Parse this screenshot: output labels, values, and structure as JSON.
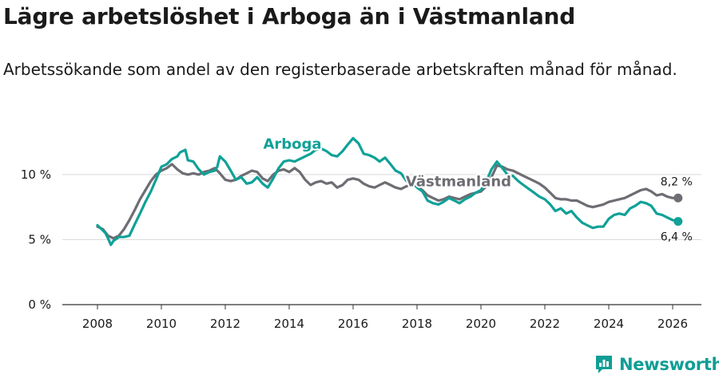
{
  "header": {
    "title": "Lägre arbetslöshet i Arboga än i Västmanland",
    "subtitle": "Arbetssökande som andel av den registerbaserade arbetskraften månad för månad."
  },
  "brand": {
    "name": "Newsworthy",
    "icon": "newsworthy-logo-icon"
  },
  "colors": {
    "arboga": "#10a198",
    "vastmanland": "#6d6d73",
    "grid": "#d9d9d9",
    "axis": "#333333",
    "text": "#1a1a1a"
  },
  "chart_data": {
    "type": "line",
    "title": "Lägre arbetslöshet i Arboga än i Västmanland",
    "subtitle": "Arbetssökande som andel av den registerbaserade arbetskraften månad för månad.",
    "xlabel": "",
    "ylabel": "",
    "xlim": [
      2006.9,
      2026.9
    ],
    "ylim": [
      0,
      13
    ],
    "x_ticks": [
      2008,
      2010,
      2012,
      2014,
      2016,
      2018,
      2020,
      2022,
      2024,
      2026
    ],
    "x_tick_labels": [
      "2008",
      "2010",
      "2012",
      "2014",
      "2016",
      "2018",
      "2020",
      "2022",
      "2024",
      "2026"
    ],
    "y_ticks": [
      0,
      5,
      10
    ],
    "y_tick_labels": [
      "0 %",
      "5 %",
      "10 %"
    ],
    "grid": "horizontal",
    "legend": "inline labels",
    "series": [
      {
        "name": "Arboga",
        "color": "#10a198",
        "end_label": "6,4 %",
        "points": [
          [
            2008.0,
            6.1
          ],
          [
            2008.17,
            5.7
          ],
          [
            2008.25,
            5.5
          ],
          [
            2008.33,
            5.1
          ],
          [
            2008.42,
            4.6
          ],
          [
            2008.5,
            4.9
          ],
          [
            2008.67,
            5.2
          ],
          [
            2008.83,
            5.2
          ],
          [
            2009.0,
            5.3
          ],
          [
            2009.17,
            6.2
          ],
          [
            2009.33,
            7.0
          ],
          [
            2009.5,
            7.9
          ],
          [
            2009.67,
            8.7
          ],
          [
            2009.83,
            9.6
          ],
          [
            2010.0,
            10.6
          ],
          [
            2010.17,
            10.8
          ],
          [
            2010.33,
            11.2
          ],
          [
            2010.5,
            11.4
          ],
          [
            2010.58,
            11.7
          ],
          [
            2010.75,
            11.9
          ],
          [
            2010.83,
            11.1
          ],
          [
            2011.0,
            11.0
          ],
          [
            2011.17,
            10.4
          ],
          [
            2011.33,
            10.0
          ],
          [
            2011.5,
            10.2
          ],
          [
            2011.67,
            10.3
          ],
          [
            2011.75,
            10.6
          ],
          [
            2011.83,
            11.4
          ],
          [
            2012.0,
            11.0
          ],
          [
            2012.17,
            10.3
          ],
          [
            2012.33,
            9.6
          ],
          [
            2012.5,
            9.8
          ],
          [
            2012.67,
            9.3
          ],
          [
            2012.83,
            9.4
          ],
          [
            2013.0,
            9.8
          ],
          [
            2013.17,
            9.3
          ],
          [
            2013.33,
            9.0
          ],
          [
            2013.5,
            9.7
          ],
          [
            2013.67,
            10.5
          ],
          [
            2013.83,
            11.0
          ],
          [
            2014.0,
            11.1
          ],
          [
            2014.17,
            11.0
          ],
          [
            2014.33,
            11.2
          ],
          [
            2014.5,
            11.4
          ],
          [
            2014.67,
            11.6
          ],
          [
            2014.83,
            11.9
          ],
          [
            2015.0,
            12.0
          ],
          [
            2015.17,
            11.8
          ],
          [
            2015.33,
            11.5
          ],
          [
            2015.5,
            11.4
          ],
          [
            2015.67,
            11.8
          ],
          [
            2015.83,
            12.3
          ],
          [
            2016.0,
            12.8
          ],
          [
            2016.17,
            12.4
          ],
          [
            2016.33,
            11.6
          ],
          [
            2016.5,
            11.5
          ],
          [
            2016.67,
            11.3
          ],
          [
            2016.83,
            11.0
          ],
          [
            2017.0,
            11.3
          ],
          [
            2017.17,
            10.8
          ],
          [
            2017.33,
            10.3
          ],
          [
            2017.5,
            10.1
          ],
          [
            2017.67,
            9.5
          ],
          [
            2017.83,
            9.5
          ],
          [
            2018.0,
            9.0
          ],
          [
            2018.17,
            8.7
          ],
          [
            2018.33,
            8.0
          ],
          [
            2018.5,
            7.8
          ],
          [
            2018.67,
            7.7
          ],
          [
            2018.83,
            7.9
          ],
          [
            2019.0,
            8.2
          ],
          [
            2019.17,
            8.0
          ],
          [
            2019.33,
            7.8
          ],
          [
            2019.5,
            8.1
          ],
          [
            2019.67,
            8.3
          ],
          [
            2019.83,
            8.6
          ],
          [
            2020.0,
            8.8
          ],
          [
            2020.17,
            9.5
          ],
          [
            2020.33,
            10.4
          ],
          [
            2020.5,
            11.0
          ],
          [
            2020.67,
            10.5
          ],
          [
            2020.83,
            10.0
          ],
          [
            2021.0,
            9.9
          ],
          [
            2021.17,
            9.5
          ],
          [
            2021.33,
            9.2
          ],
          [
            2021.5,
            8.9
          ],
          [
            2021.67,
            8.6
          ],
          [
            2021.83,
            8.3
          ],
          [
            2022.0,
            8.1
          ],
          [
            2022.17,
            7.7
          ],
          [
            2022.33,
            7.2
          ],
          [
            2022.5,
            7.4
          ],
          [
            2022.67,
            7.0
          ],
          [
            2022.83,
            7.2
          ],
          [
            2023.0,
            6.7
          ],
          [
            2023.17,
            6.3
          ],
          [
            2023.33,
            6.1
          ],
          [
            2023.5,
            5.9
          ],
          [
            2023.67,
            6.0
          ],
          [
            2023.83,
            6.0
          ],
          [
            2024.0,
            6.6
          ],
          [
            2024.17,
            6.9
          ],
          [
            2024.33,
            7.0
          ],
          [
            2024.5,
            6.9
          ],
          [
            2024.67,
            7.4
          ],
          [
            2024.83,
            7.6
          ],
          [
            2025.0,
            7.9
          ],
          [
            2025.17,
            7.8
          ],
          [
            2025.33,
            7.6
          ],
          [
            2025.5,
            7.0
          ],
          [
            2025.67,
            6.9
          ],
          [
            2025.83,
            6.7
          ],
          [
            2026.0,
            6.5
          ],
          [
            2026.17,
            6.4
          ]
        ]
      },
      {
        "name": "Västmanland",
        "color": "#6d6d73",
        "end_label": "8,2 %",
        "points": [
          [
            2008.0,
            6.0
          ],
          [
            2008.17,
            5.8
          ],
          [
            2008.33,
            5.3
          ],
          [
            2008.5,
            5.1
          ],
          [
            2008.67,
            5.3
          ],
          [
            2008.83,
            5.8
          ],
          [
            2009.0,
            6.5
          ],
          [
            2009.17,
            7.3
          ],
          [
            2009.33,
            8.1
          ],
          [
            2009.5,
            8.8
          ],
          [
            2009.67,
            9.5
          ],
          [
            2009.83,
            10.0
          ],
          [
            2010.0,
            10.3
          ],
          [
            2010.17,
            10.5
          ],
          [
            2010.33,
            10.8
          ],
          [
            2010.5,
            10.4
          ],
          [
            2010.67,
            10.1
          ],
          [
            2010.83,
            10.0
          ],
          [
            2011.0,
            10.1
          ],
          [
            2011.17,
            10.0
          ],
          [
            2011.33,
            10.2
          ],
          [
            2011.5,
            10.3
          ],
          [
            2011.67,
            10.5
          ],
          [
            2011.83,
            10.1
          ],
          [
            2012.0,
            9.6
          ],
          [
            2012.17,
            9.5
          ],
          [
            2012.33,
            9.6
          ],
          [
            2012.5,
            9.9
          ],
          [
            2012.67,
            10.1
          ],
          [
            2012.83,
            10.3
          ],
          [
            2013.0,
            10.2
          ],
          [
            2013.17,
            9.7
          ],
          [
            2013.33,
            9.5
          ],
          [
            2013.5,
            10.0
          ],
          [
            2013.67,
            10.3
          ],
          [
            2013.83,
            10.4
          ],
          [
            2014.0,
            10.2
          ],
          [
            2014.17,
            10.5
          ],
          [
            2014.33,
            10.2
          ],
          [
            2014.5,
            9.6
          ],
          [
            2014.67,
            9.2
          ],
          [
            2014.83,
            9.4
          ],
          [
            2015.0,
            9.5
          ],
          [
            2015.17,
            9.3
          ],
          [
            2015.33,
            9.4
          ],
          [
            2015.5,
            9.0
          ],
          [
            2015.67,
            9.2
          ],
          [
            2015.83,
            9.6
          ],
          [
            2016.0,
            9.7
          ],
          [
            2016.17,
            9.6
          ],
          [
            2016.33,
            9.3
          ],
          [
            2016.5,
            9.1
          ],
          [
            2016.67,
            9.0
          ],
          [
            2016.83,
            9.2
          ],
          [
            2017.0,
            9.4
          ],
          [
            2017.17,
            9.2
          ],
          [
            2017.33,
            9.0
          ],
          [
            2017.5,
            8.9
          ],
          [
            2017.67,
            9.1
          ],
          [
            2017.83,
            9.2
          ],
          [
            2018.0,
            9.1
          ],
          [
            2018.17,
            8.8
          ],
          [
            2018.33,
            8.4
          ],
          [
            2018.5,
            8.2
          ],
          [
            2018.67,
            8.0
          ],
          [
            2018.83,
            8.1
          ],
          [
            2019.0,
            8.3
          ],
          [
            2019.17,
            8.2
          ],
          [
            2019.33,
            8.1
          ],
          [
            2019.5,
            8.3
          ],
          [
            2019.67,
            8.5
          ],
          [
            2019.83,
            8.6
          ],
          [
            2020.0,
            8.7
          ],
          [
            2020.17,
            9.1
          ],
          [
            2020.33,
            9.8
          ],
          [
            2020.5,
            10.7
          ],
          [
            2020.67,
            10.6
          ],
          [
            2020.83,
            10.4
          ],
          [
            2021.0,
            10.3
          ],
          [
            2021.17,
            10.1
          ],
          [
            2021.33,
            9.9
          ],
          [
            2021.5,
            9.7
          ],
          [
            2021.67,
            9.5
          ],
          [
            2021.83,
            9.3
          ],
          [
            2022.0,
            9.0
          ],
          [
            2022.17,
            8.6
          ],
          [
            2022.33,
            8.2
          ],
          [
            2022.5,
            8.1
          ],
          [
            2022.67,
            8.1
          ],
          [
            2022.83,
            8.0
          ],
          [
            2023.0,
            8.0
          ],
          [
            2023.17,
            7.8
          ],
          [
            2023.33,
            7.6
          ],
          [
            2023.5,
            7.5
          ],
          [
            2023.67,
            7.6
          ],
          [
            2023.83,
            7.7
          ],
          [
            2024.0,
            7.9
          ],
          [
            2024.17,
            8.0
          ],
          [
            2024.33,
            8.1
          ],
          [
            2024.5,
            8.2
          ],
          [
            2024.67,
            8.4
          ],
          [
            2024.83,
            8.6
          ],
          [
            2025.0,
            8.8
          ],
          [
            2025.17,
            8.9
          ],
          [
            2025.33,
            8.7
          ],
          [
            2025.5,
            8.4
          ],
          [
            2025.67,
            8.5
          ],
          [
            2025.83,
            8.3
          ],
          [
            2026.0,
            8.2
          ],
          [
            2026.17,
            8.2
          ]
        ]
      }
    ],
    "annotations": [
      {
        "series": "Arboga",
        "text": "Arboga",
        "x": 2014.1,
        "y": 12.0
      },
      {
        "series": "Västmanland",
        "text": "Västmanland",
        "x": 2019.3,
        "y": 9.1
      }
    ]
  }
}
